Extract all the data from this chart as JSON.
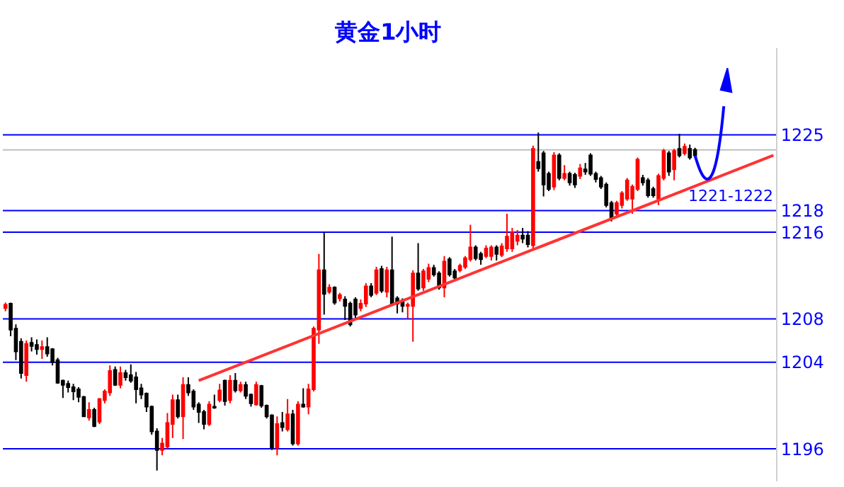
{
  "chart_data": {
    "type": "candlestick",
    "title": "黄金1小时",
    "categories": [
      null,
      null,
      null,
      null,
      null,
      null,
      null,
      null,
      null,
      null,
      null,
      null,
      null,
      null,
      null,
      null,
      null,
      null,
      null,
      null,
      null,
      null,
      null,
      null,
      null,
      null,
      null,
      null,
      null,
      null,
      null,
      null,
      null,
      null,
      null,
      null,
      null,
      null,
      null,
      null,
      null,
      null,
      null,
      null,
      null,
      null,
      null,
      null,
      null,
      null,
      null,
      null,
      null,
      null,
      null,
      null,
      null,
      null,
      null,
      null,
      null,
      null,
      null,
      null,
      null,
      null,
      null,
      null,
      null,
      null,
      null,
      null,
      null,
      null,
      null,
      null,
      null,
      null,
      null,
      null,
      null,
      null,
      null,
      null,
      null,
      null,
      null,
      null,
      null,
      null,
      null,
      null,
      null,
      null,
      null,
      null,
      null,
      null,
      null,
      null,
      null,
      null,
      null,
      null,
      null,
      null,
      null,
      null,
      null,
      null,
      null,
      null,
      null,
      null,
      null,
      null,
      null,
      null,
      null,
      null,
      null,
      null,
      null,
      null,
      null,
      null,
      null,
      null,
      null,
      null,
      null,
      null,
      null,
      null,
      null,
      null,
      null,
      null,
      null,
      null,
      null,
      null,
      null,
      null,
      null,
      null,
      null,
      null
    ],
    "ohlc": [
      [
        1209.0,
        1209.5,
        1208.7,
        1209.3
      ],
      [
        1209.4,
        1209.5,
        1206.4,
        1207.0
      ],
      [
        1207.1,
        1207.5,
        1204.2,
        1205.0
      ],
      [
        1205.9,
        1206.2,
        1202.5,
        1203.0
      ],
      [
        1202.8,
        1206.0,
        1202.2,
        1205.7
      ],
      [
        1205.8,
        1206.3,
        1205.0,
        1205.5
      ],
      [
        1205.6,
        1206.1,
        1204.7,
        1205.2
      ],
      [
        1205.2,
        1206.0,
        1204.3,
        1205.4
      ],
      [
        1205.4,
        1206.3,
        1204.5,
        1204.8
      ],
      [
        1205.2,
        1205.3,
        1203.7,
        1204.0
      ],
      [
        1204.2,
        1204.4,
        1202.0,
        1202.1
      ],
      [
        1202.3,
        1202.4,
        1200.7,
        1201.9
      ],
      [
        1202.0,
        1202.3,
        1201.2,
        1201.7
      ],
      [
        1201.7,
        1202.0,
        1200.5,
        1201.3
      ],
      [
        1201.5,
        1201.7,
        1200.3,
        1200.8
      ],
      [
        1200.8,
        1200.9,
        1199.0,
        1199.0
      ],
      [
        1198.9,
        1200.3,
        1198.6,
        1199.6
      ],
      [
        1199.6,
        1199.8,
        1198.0,
        1198.1
      ],
      [
        1198.5,
        1200.7,
        1198.3,
        1200.6
      ],
      [
        1200.5,
        1201.5,
        1200.2,
        1201.3
      ],
      [
        1201.2,
        1203.7,
        1200.9,
        1203.2
      ],
      [
        1203.3,
        1203.6,
        1201.8,
        1201.9
      ],
      [
        1201.9,
        1203.6,
        1201.6,
        1203.0
      ],
      [
        1203.0,
        1203.3,
        1202.3,
        1202.6
      ],
      [
        1202.8,
        1203.8,
        1202.1,
        1202.3
      ],
      [
        1202.6,
        1203.1,
        1200.2,
        1201.5
      ],
      [
        1201.6,
        1202.0,
        1200.6,
        1201.0
      ],
      [
        1201.1,
        1201.2,
        1199.4,
        1199.9
      ],
      [
        1199.9,
        1200.0,
        1197.3,
        1197.6
      ],
      [
        1197.6,
        1197.9,
        1194.0,
        1195.9
      ],
      [
        1195.9,
        1197.0,
        1195.4,
        1196.5
      ],
      [
        1196.2,
        1199.3,
        1196.0,
        1198.4
      ],
      [
        1198.3,
        1201.0,
        1197.0,
        1200.5
      ],
      [
        1200.5,
        1201.0,
        1198.8,
        1199.0
      ],
      [
        1199.0,
        1202.6,
        1196.9,
        1201.9
      ],
      [
        1201.9,
        1202.6,
        1200.9,
        1201.2
      ],
      [
        1201.3,
        1201.5,
        1199.6,
        1199.9
      ],
      [
        1200.1,
        1200.3,
        1198.4,
        1199.4
      ],
      [
        1199.4,
        1199.6,
        1197.8,
        1198.3
      ],
      [
        1198.3,
        1200.4,
        1198.1,
        1200.1
      ],
      [
        1199.9,
        1201.0,
        1199.7,
        1199.8
      ],
      [
        1200.5,
        1202.0,
        1200.3,
        1201.4
      ],
      [
        1202.3,
        1202.4,
        1200.0,
        1200.4
      ],
      [
        1200.5,
        1202.8,
        1200.2,
        1202.3
      ],
      [
        1202.3,
        1203.0,
        1201.2,
        1201.4
      ],
      [
        1201.4,
        1202.2,
        1201.2,
        1201.9
      ],
      [
        1201.9,
        1202.2,
        1200.6,
        1200.9
      ],
      [
        1201.0,
        1201.1,
        1199.9,
        1200.2
      ],
      [
        1200.1,
        1202.2,
        1200.0,
        1201.9
      ],
      [
        1201.8,
        1201.9,
        1199.8,
        1200.0
      ],
      [
        1200.0,
        1200.1,
        1198.8,
        1199.0
      ],
      [
        1199.1,
        1199.2,
        1195.9,
        1196.1
      ],
      [
        1196.1,
        1199.0,
        1195.4,
        1198.3
      ],
      [
        1198.4,
        1199.4,
        1197.6,
        1198.0
      ],
      [
        1197.8,
        1200.6,
        1197.6,
        1199.2
      ],
      [
        1199.2,
        1199.6,
        1196.3,
        1196.5
      ],
      [
        1196.5,
        1200.4,
        1196.3,
        1200.1
      ],
      [
        1200.1,
        1201.6,
        1199.8,
        1199.9
      ],
      [
        1199.9,
        1202.0,
        1199.2,
        1201.5
      ],
      [
        1201.5,
        1207.3,
        1201.3,
        1207.1
      ],
      [
        1207.0,
        1214.0,
        1205.7,
        1212.5
      ],
      [
        1212.5,
        1216.0,
        1208.4,
        1210.3
      ],
      [
        1210.5,
        1211.2,
        1210.3,
        1210.9
      ],
      [
        1210.9,
        1211.0,
        1209.3,
        1209.5
      ],
      [
        1209.9,
        1210.4,
        1209.6,
        1210.2
      ],
      [
        1209.8,
        1210.1,
        1207.9,
        1209.2
      ],
      [
        1209.4,
        1209.6,
        1207.3,
        1207.5
      ],
      [
        1209.8,
        1210.0,
        1208.0,
        1208.4
      ],
      [
        1209.0,
        1209.8,
        1208.7,
        1209.4
      ],
      [
        1209.4,
        1211.3,
        1209.1,
        1211.0
      ],
      [
        1211.0,
        1211.3,
        1210.0,
        1210.2
      ],
      [
        1210.4,
        1212.8,
        1210.2,
        1212.5
      ],
      [
        1212.6,
        1212.9,
        1210.4,
        1210.6
      ],
      [
        1210.5,
        1212.8,
        1210.0,
        1212.5
      ],
      [
        1212.5,
        1215.6,
        1209.2,
        1209.4
      ],
      [
        1209.9,
        1210.1,
        1208.5,
        1209.4
      ],
      [
        1209.7,
        1209.9,
        1208.6,
        1209.2
      ],
      [
        1209.2,
        1209.5,
        1208.0,
        1209.3
      ],
      [
        1209.2,
        1212.5,
        1205.9,
        1212.2
      ],
      [
        1212.2,
        1215.0,
        1210.6,
        1210.8
      ],
      [
        1210.9,
        1212.6,
        1210.6,
        1212.4
      ],
      [
        1211.7,
        1213.1,
        1211.4,
        1212.7
      ],
      [
        1212.7,
        1213.0,
        1211.9,
        1212.1
      ],
      [
        1212.2,
        1212.4,
        1210.7,
        1210.9
      ],
      [
        1210.9,
        1213.8,
        1210.0,
        1213.3
      ],
      [
        1213.5,
        1213.7,
        1211.9,
        1212.1
      ],
      [
        1212.4,
        1212.6,
        1211.5,
        1211.8
      ],
      [
        1212.5,
        1213.1,
        1212.3,
        1212.9
      ],
      [
        1212.8,
        1213.8,
        1212.6,
        1213.6
      ],
      [
        1213.5,
        1216.7,
        1213.3,
        1214.6
      ],
      [
        1214.6,
        1214.8,
        1213.4,
        1213.6
      ],
      [
        1214.0,
        1214.2,
        1213.0,
        1213.5
      ],
      [
        1213.8,
        1214.8,
        1213.6,
        1214.5
      ],
      [
        1213.8,
        1214.8,
        1213.4,
        1214.6
      ],
      [
        1214.6,
        1214.8,
        1213.4,
        1214.0
      ],
      [
        1213.9,
        1215.0,
        1213.7,
        1214.7
      ],
      [
        1214.5,
        1217.7,
        1214.2,
        1215.6
      ],
      [
        1214.5,
        1216.4,
        1214.2,
        1216.0
      ],
      [
        1215.2,
        1216.2,
        1214.8,
        1215.7
      ],
      [
        1215.7,
        1216.4,
        1215.0,
        1215.4
      ],
      [
        1215.7,
        1216.1,
        1214.6,
        1214.9
      ],
      [
        1214.8,
        1224.0,
        1214.5,
        1223.7
      ],
      [
        1222.5,
        1225.2,
        1221.6,
        1221.9
      ],
      [
        1223.3,
        1223.5,
        1219.3,
        1220.4
      ],
      [
        1221.4,
        1221.6,
        1219.8,
        1220.0
      ],
      [
        1220.2,
        1223.4,
        1219.9,
        1223.1
      ],
      [
        1223.1,
        1223.3,
        1220.8,
        1221.0
      ],
      [
        1221.0,
        1222.2,
        1220.8,
        1221.4
      ],
      [
        1221.4,
        1221.6,
        1220.3,
        1220.6
      ],
      [
        1221.3,
        1221.5,
        1220.1,
        1220.4
      ],
      [
        1221.2,
        1222.3,
        1220.9,
        1221.9
      ],
      [
        1221.8,
        1222.4,
        1221.3,
        1221.6
      ],
      [
        1223.1,
        1223.3,
        1221.2,
        1221.4
      ],
      [
        1221.4,
        1221.6,
        1220.6,
        1220.9
      ],
      [
        1221.0,
        1221.2,
        1220.0,
        1220.2
      ],
      [
        1220.4,
        1220.6,
        1218.3,
        1218.5
      ],
      [
        1218.7,
        1218.9,
        1217.0,
        1217.3
      ],
      [
        1217.7,
        1218.9,
        1217.4,
        1218.7
      ],
      [
        1218.5,
        1219.8,
        1218.2,
        1219.6
      ],
      [
        1219.1,
        1221.0,
        1218.9,
        1220.8
      ],
      [
        1219.1,
        1220.4,
        1217.7,
        1220.2
      ],
      [
        1220.0,
        1222.9,
        1219.8,
        1222.7
      ],
      [
        1221.0,
        1221.3,
        1220.3,
        1220.6
      ],
      [
        1220.8,
        1221.0,
        1219.2,
        1219.4
      ],
      [
        1220.0,
        1220.2,
        1219.2,
        1219.4
      ],
      [
        1219.1,
        1221.4,
        1218.5,
        1221.2
      ],
      [
        1221.0,
        1223.7,
        1220.8,
        1223.5
      ],
      [
        1223.3,
        1223.5,
        1221.2,
        1221.6
      ],
      [
        1221.8,
        1223.7,
        1220.8,
        1223.5
      ],
      [
        1223.7,
        1225.1,
        1222.9,
        1223.1
      ],
      [
        1223.3,
        1224.2,
        1223.1,
        1223.9
      ],
      [
        1223.7,
        1224.1,
        1222.7,
        1222.9
      ],
      [
        1223.6,
        1223.8,
        1222.8,
        1223.1
      ],
      null,
      null,
      null,
      null,
      null,
      null,
      null,
      null,
      null,
      null,
      null,
      null,
      null,
      null,
      null
    ],
    "colors": [
      "#ff0000",
      "#000000",
      "#000000",
      "#000000",
      "#ff0000",
      "#000000",
      "#000000",
      "#ff0000",
      "#000000",
      "#000000",
      "#000000",
      "#000000",
      "#000000",
      "#000000",
      "#000000",
      "#000000",
      "#ff0000",
      "#000000",
      "#ff0000",
      "#ff0000",
      "#ff0000",
      "#000000",
      "#ff0000",
      "#000000",
      "#000000",
      "#000000",
      "#000000",
      "#000000",
      "#000000",
      "#000000",
      "#ff0000",
      "#ff0000",
      "#ff0000",
      "#000000",
      "#ff0000",
      "#000000",
      "#000000",
      "#000000",
      "#000000",
      "#ff0000",
      "#000000",
      "#ff0000",
      "#000000",
      "#ff0000",
      "#000000",
      "#ff0000",
      "#000000",
      "#000000",
      "#ff0000",
      "#000000",
      "#000000",
      "#000000",
      "#ff0000",
      "#000000",
      "#ff0000",
      "#000000",
      "#ff0000",
      "#000000",
      "#ff0000",
      "#ff0000",
      "#ff0000",
      "#000000",
      "#ff0000",
      "#000000",
      "#ff0000",
      "#000000",
      "#000000",
      "#000000",
      "#ff0000",
      "#ff0000",
      "#000000",
      "#ff0000",
      "#000000",
      "#ff0000",
      "#000000",
      "#000000",
      "#000000",
      "#ff0000",
      "#ff0000",
      "#000000",
      "#ff0000",
      "#ff0000",
      "#000000",
      "#000000",
      "#ff0000",
      "#000000",
      "#000000",
      "#ff0000",
      "#ff0000",
      "#ff0000",
      "#000000",
      "#000000",
      "#ff0000",
      "#ff0000",
      "#000000",
      "#ff0000",
      "#ff0000",
      "#ff0000",
      "#ff0000",
      "#000000",
      "#000000",
      "#ff0000",
      "#000000",
      "#000000",
      "#000000",
      "#ff0000",
      "#000000",
      "#ff0000",
      "#000000",
      "#000000",
      "#ff0000",
      "#000000",
      "#000000",
      "#000000",
      "#000000",
      "#000000",
      "#000000",
      "#ff0000",
      "#ff0000",
      "#ff0000",
      "#ff0000",
      "#ff0000",
      "#000000",
      "#000000",
      "#000000",
      "#ff0000",
      "#ff0000",
      "#000000",
      "#ff0000",
      "#000000",
      "#ff0000",
      "#000000",
      "#000000",
      null,
      null,
      null,
      null,
      null,
      null,
      null,
      null,
      null,
      null,
      null,
      null,
      null,
      null,
      null
    ],
    "series": [
      {
        "type": "line",
        "color": "#ff3333",
        "values": [
          null,
          null,
          null,
          null,
          null,
          null,
          null,
          null,
          null,
          null,
          null,
          null,
          null,
          null,
          null,
          null,
          null,
          null,
          null,
          null,
          null,
          null,
          null,
          null,
          null,
          null,
          null,
          null,
          null,
          null,
          null,
          null,
          null,
          null,
          null,
          null,
          null,
          1202.3,
          null,
          null,
          null,
          null,
          null,
          null,
          null,
          null,
          null,
          null,
          null,
          null,
          null,
          null,
          null,
          null,
          null,
          null,
          null,
          null,
          null,
          null,
          null,
          null,
          null,
          null,
          null,
          null,
          null,
          null,
          null,
          null,
          null,
          null,
          null,
          null,
          null,
          null,
          null,
          null,
          null,
          null,
          null,
          null,
          null,
          null,
          null,
          null,
          null,
          null,
          null,
          null,
          null,
          null,
          null,
          null,
          null,
          null,
          null,
          null,
          null,
          null,
          null,
          null,
          null,
          null,
          null,
          null,
          null,
          null,
          null,
          null,
          null,
          null,
          null,
          null,
          null,
          null,
          null,
          null,
          null,
          null,
          null,
          null,
          null,
          null,
          null,
          null,
          null,
          null,
          null,
          null,
          null,
          null,
          null,
          null,
          null,
          null,
          null,
          null,
          null,
          null,
          null,
          null,
          null,
          null,
          null,
          null,
          null,
          1223.1
        ]
      }
    ],
    "ref_lines": [
      {
        "axis": "y",
        "value": 1225,
        "color": "#0000ff"
      },
      {
        "axis": "y",
        "value": 1223.6,
        "color": "#c0c0c0"
      },
      {
        "axis": "y",
        "value": 1218,
        "color": "#0000ff"
      },
      {
        "axis": "y",
        "value": 1216,
        "color": "#0000ff"
      },
      {
        "axis": "y",
        "value": 1208,
        "color": "#0000ff"
      },
      {
        "axis": "y",
        "value": 1204,
        "color": "#0000ff"
      },
      {
        "axis": "y",
        "value": 1196,
        "color": "#0000ff"
      }
    ],
    "yticks": [
      1196,
      1204,
      1208,
      1216,
      1218,
      1225
    ],
    "ylim": [
      1193,
      1233
    ],
    "annotations": [
      "1221-1222"
    ],
    "tick_labels": "y",
    "grid": false
  }
}
